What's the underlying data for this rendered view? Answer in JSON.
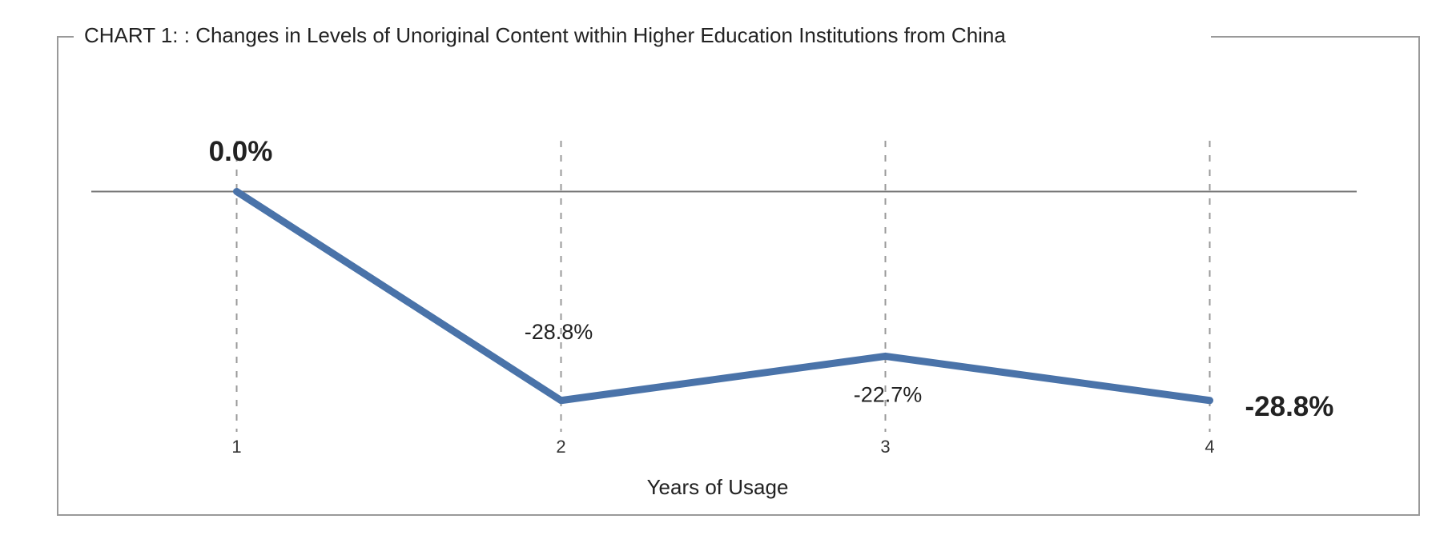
{
  "chart_data": {
    "type": "line",
    "title": "CHART 1: : Changes in Levels of Unoriginal Content within Higher Education Institutions from China",
    "x_label": "Years of Usage",
    "categories": [
      "1",
      "2",
      "3",
      "4"
    ],
    "values": [
      0,
      -28.8,
      -22.7,
      -28.8
    ],
    "value_labels": [
      "0.0%",
      "-28.8%",
      "-22.7%",
      "-28.8%"
    ],
    "color": "#4a73a9",
    "ylim": [
      -35,
      7
    ],
    "zero_line": true
  }
}
